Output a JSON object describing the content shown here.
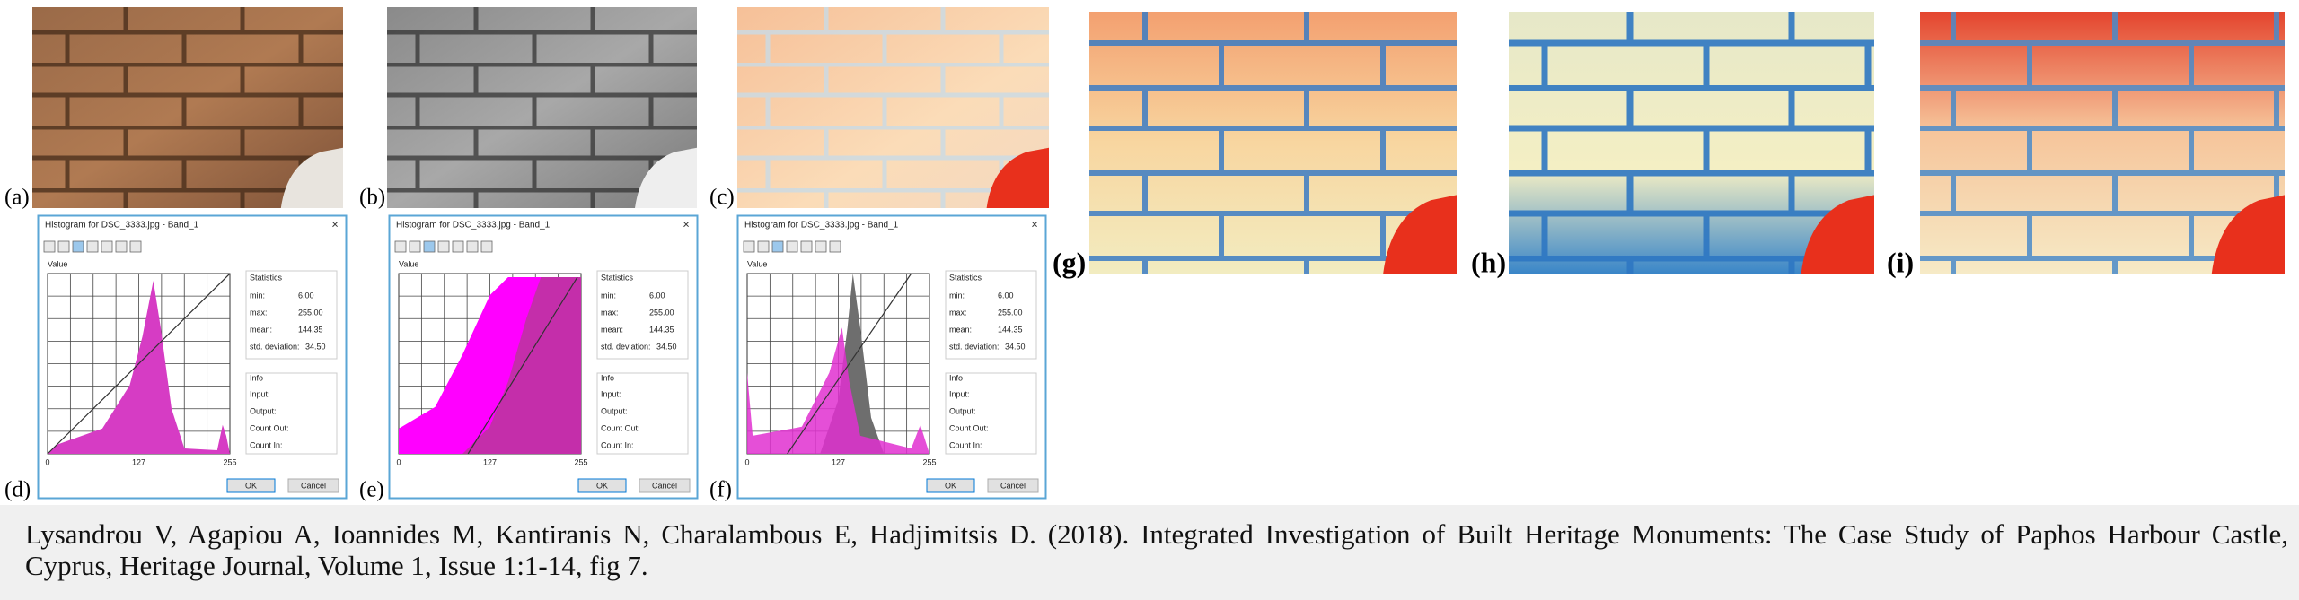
{
  "images": [
    {
      "label": "(a)"
    },
    {
      "label": "(b)"
    },
    {
      "label": "(c)"
    },
    {
      "label": "(g)"
    },
    {
      "label": "(h)"
    },
    {
      "label": "(i)"
    }
  ],
  "dialogs": [
    {
      "label": "(d)",
      "title": "Histogram for DSC_3333.jpg - Band_1",
      "plot_label": "Value",
      "statistics": {
        "heading": "Statistics",
        "rows": [
          [
            "min:",
            "6.00"
          ],
          [
            "max:",
            "255.00"
          ],
          [
            "mean:",
            "144.35"
          ],
          [
            "std. deviation:",
            "34.50"
          ]
        ]
      },
      "info": {
        "heading": "Info",
        "rows": [
          "Input:",
          "Output:",
          "Count Out:",
          "Count In:"
        ]
      },
      "axis_labels": [
        "0",
        "127",
        "255"
      ],
      "buttons": [
        "OK",
        "Cancel"
      ]
    },
    {
      "label": "(e)",
      "title": "Histogram for DSC_3333.jpg - Band_1",
      "plot_label": "Value",
      "statistics": {
        "heading": "Statistics",
        "rows": [
          [
            "min:",
            "6.00"
          ],
          [
            "max:",
            "255.00"
          ],
          [
            "mean:",
            "144.35"
          ],
          [
            "std. deviation:",
            "34.50"
          ]
        ]
      },
      "info": {
        "heading": "Info",
        "rows": [
          "Input:",
          "Output:",
          "Count Out:",
          "Count In:"
        ]
      },
      "axis_labels": [
        "0",
        "127",
        "255"
      ],
      "buttons": [
        "OK",
        "Cancel"
      ]
    },
    {
      "label": "(f)",
      "title": "Histogram for DSC_3333.jpg - Band_1",
      "plot_label": "Value",
      "statistics": {
        "heading": "Statistics",
        "rows": [
          [
            "min:",
            "6.00"
          ],
          [
            "max:",
            "255.00"
          ],
          [
            "mean:",
            "144.35"
          ],
          [
            "std. deviation:",
            "34.50"
          ]
        ]
      },
      "info": {
        "heading": "Info",
        "rows": [
          "Input:",
          "Output:",
          "Count Out:",
          "Count In:"
        ]
      },
      "axis_labels": [
        "0",
        "127",
        "255"
      ],
      "buttons": [
        "OK",
        "Cancel"
      ]
    }
  ],
  "caption": {
    "lines": [
      "Lysandrou V, Agapiou A, Ioannides M, Kantiranis N, Charalambous E, Hadjimitsis D. (2018). Integrated Investigation of Built Heritage Monuments: The Case Study of Paphos Harbour Castle,",
      "Cyprus, Heritage Journal, Volume 1, Issue 1:1-14, fig 7."
    ]
  }
}
